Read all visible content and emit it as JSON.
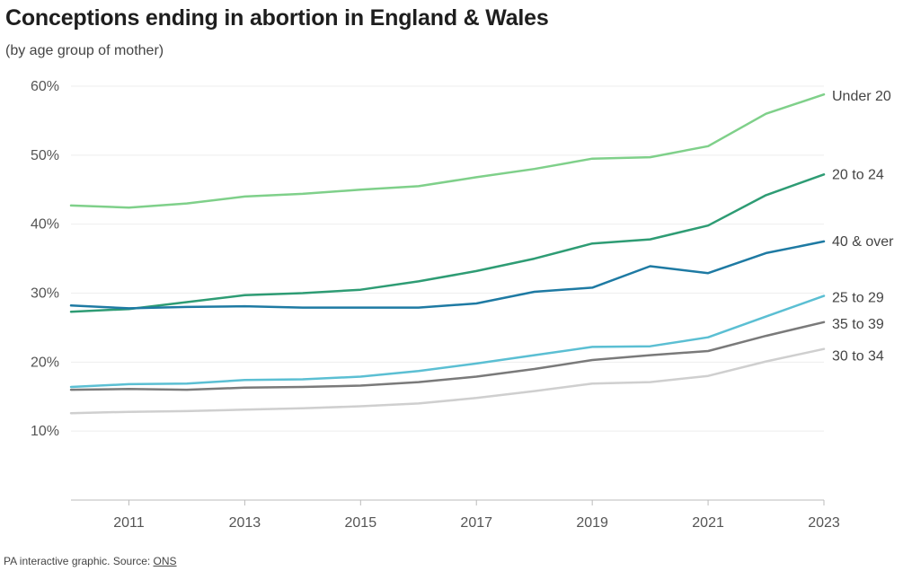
{
  "header": {
    "title": "Conceptions ending in abortion in England & Wales",
    "subtitle": "(by age group of mother)"
  },
  "footer": {
    "credit": "PA interactive graphic. Source: ",
    "source_link": "ONS"
  },
  "chart_data": {
    "type": "line",
    "title": "Conceptions ending in abortion in England & Wales",
    "subtitle": "(by age group of mother)",
    "xlabel": "",
    "ylabel": "",
    "x": [
      2010,
      2011,
      2012,
      2013,
      2014,
      2015,
      2016,
      2017,
      2018,
      2019,
      2020,
      2021,
      2022,
      2023
    ],
    "x_ticks": [
      2011,
      2013,
      2015,
      2017,
      2019,
      2021,
      2023
    ],
    "y_ticks": [
      10,
      20,
      30,
      40,
      50,
      60
    ],
    "y_tick_labels": [
      "10%",
      "20%",
      "30%",
      "40%",
      "50%",
      "60%"
    ],
    "xlim": [
      2010,
      2023
    ],
    "ylim": [
      0,
      60
    ],
    "grid": "horizontal",
    "legend": "direct labels at line ends (right)",
    "series": [
      {
        "name": "Under 20",
        "color": "#7fd08a",
        "values": [
          42.7,
          42.4,
          43.0,
          44.0,
          44.4,
          45.0,
          45.5,
          46.8,
          48.0,
          49.5,
          49.7,
          51.3,
          56.0,
          58.8
        ]
      },
      {
        "name": "20 to 24",
        "color": "#2e9c74",
        "values": [
          27.3,
          27.7,
          28.7,
          29.7,
          30.0,
          30.5,
          31.7,
          33.2,
          35.0,
          37.2,
          37.8,
          39.8,
          44.2,
          47.2
        ]
      },
      {
        "name": "40 & over",
        "color": "#1e7aa3",
        "values": [
          28.2,
          27.8,
          28.0,
          28.1,
          27.9,
          27.9,
          27.9,
          28.5,
          30.2,
          30.8,
          33.9,
          32.9,
          35.8,
          37.5
        ]
      },
      {
        "name": "25 to 29",
        "color": "#5bbfd3",
        "values": [
          16.4,
          16.8,
          16.9,
          17.4,
          17.5,
          17.9,
          18.7,
          19.8,
          21.0,
          22.2,
          22.3,
          23.6,
          26.6,
          29.6
        ]
      },
      {
        "name": "35 to 39",
        "color": "#7a7a7a",
        "values": [
          16.0,
          16.1,
          16.0,
          16.3,
          16.4,
          16.6,
          17.1,
          17.9,
          19.0,
          20.3,
          21.0,
          21.6,
          23.8,
          25.8
        ]
      },
      {
        "name": "30 to 34",
        "color": "#cfcfcf",
        "values": [
          12.6,
          12.8,
          12.9,
          13.1,
          13.3,
          13.6,
          14.0,
          14.8,
          15.8,
          16.9,
          17.1,
          18.0,
          20.1,
          21.9
        ]
      }
    ]
  }
}
